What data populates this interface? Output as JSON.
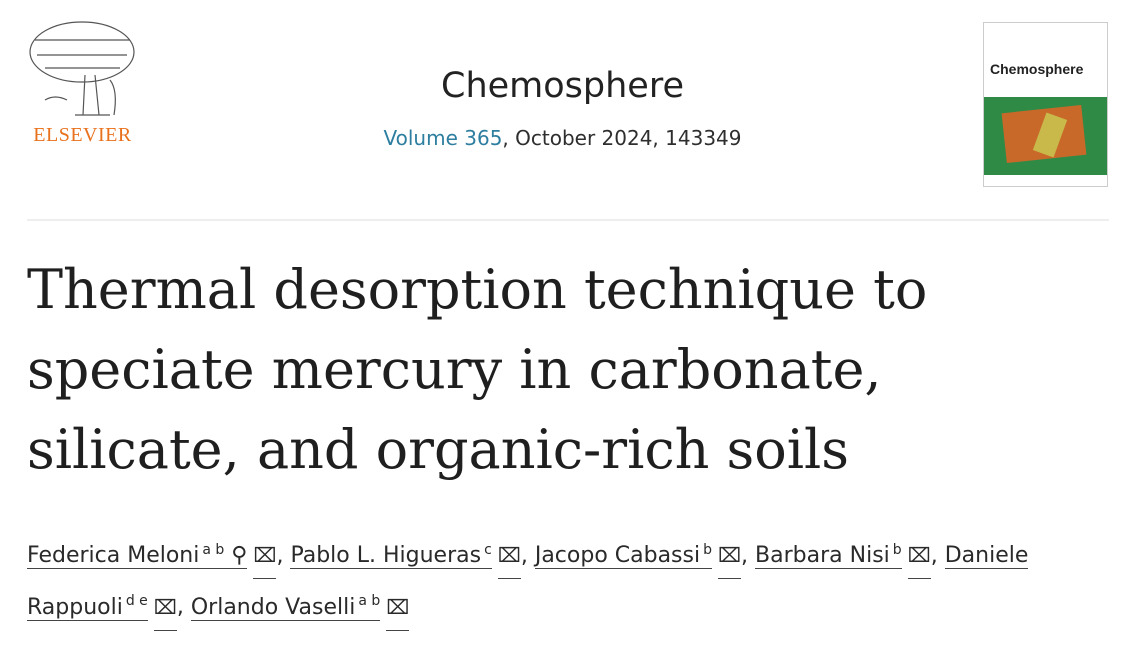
{
  "publisher": {
    "name": "ELSEVIER"
  },
  "journal": {
    "title": "Chemosphere",
    "volume_link": "Volume 365",
    "details": ", October 2024, 143349",
    "cover_title": "Chemosphere"
  },
  "article": {
    "title": "Thermal desorption technique to speciate mercury in carbonate, silicate, and organic-rich soils"
  },
  "authors": [
    {
      "name": "Federica Meloni",
      "aff": "a b",
      "corresponding": true
    },
    {
      "name": "Pablo L. Higueras",
      "aff": "c"
    },
    {
      "name": "Jacopo Cabassi",
      "aff": "b"
    },
    {
      "name": "Barbara Nisi",
      "aff": "b"
    },
    {
      "name": "Daniele Rappuoli",
      "aff": "d e"
    },
    {
      "name": "Orlando Vaselli",
      "aff": "a b"
    }
  ],
  "icons": {
    "email": "envelope-icon",
    "person": "person-icon"
  },
  "colors": {
    "brand": "#e9711c",
    "link": "#2e7ea0"
  }
}
